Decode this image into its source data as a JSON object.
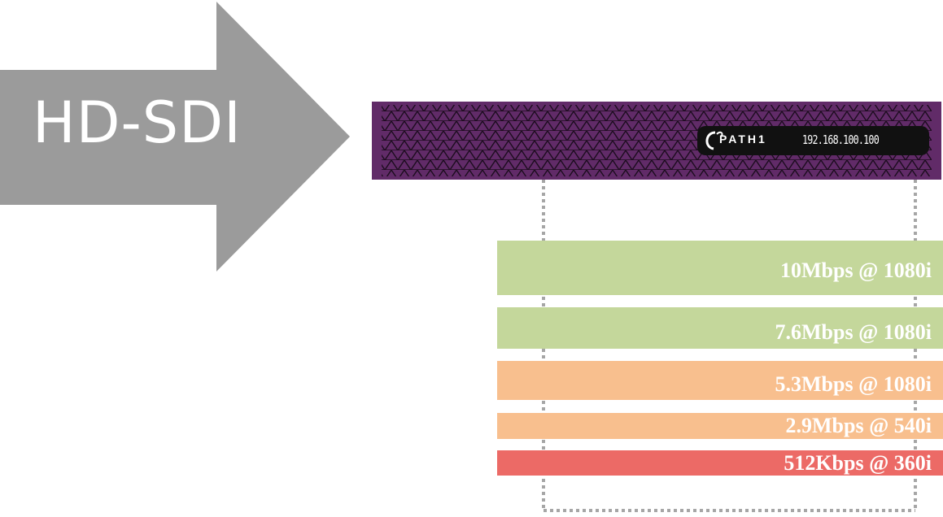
{
  "arrow": {
    "label": "HD-SDI",
    "color": "#9b9b9b"
  },
  "device": {
    "brand": "PATH1",
    "ip_address": "192.168.100.100",
    "body_color": "#612b68",
    "display_color": "#111111"
  },
  "streams": [
    {
      "label": "10Mbps @ 1080i",
      "color": "#c4d79b"
    },
    {
      "label": "7.6Mbps @ 1080i",
      "color": "#c4d79b"
    },
    {
      "label": "5.3Mbps @ 1080i",
      "color": "#f8bf8e"
    },
    {
      "label": "2.9Mbps @ 540i",
      "color": "#f8bf8e"
    },
    {
      "label": "512Kbps @ 360i",
      "color": "#ec6a66"
    }
  ],
  "connector_color": "#a6a6a6"
}
